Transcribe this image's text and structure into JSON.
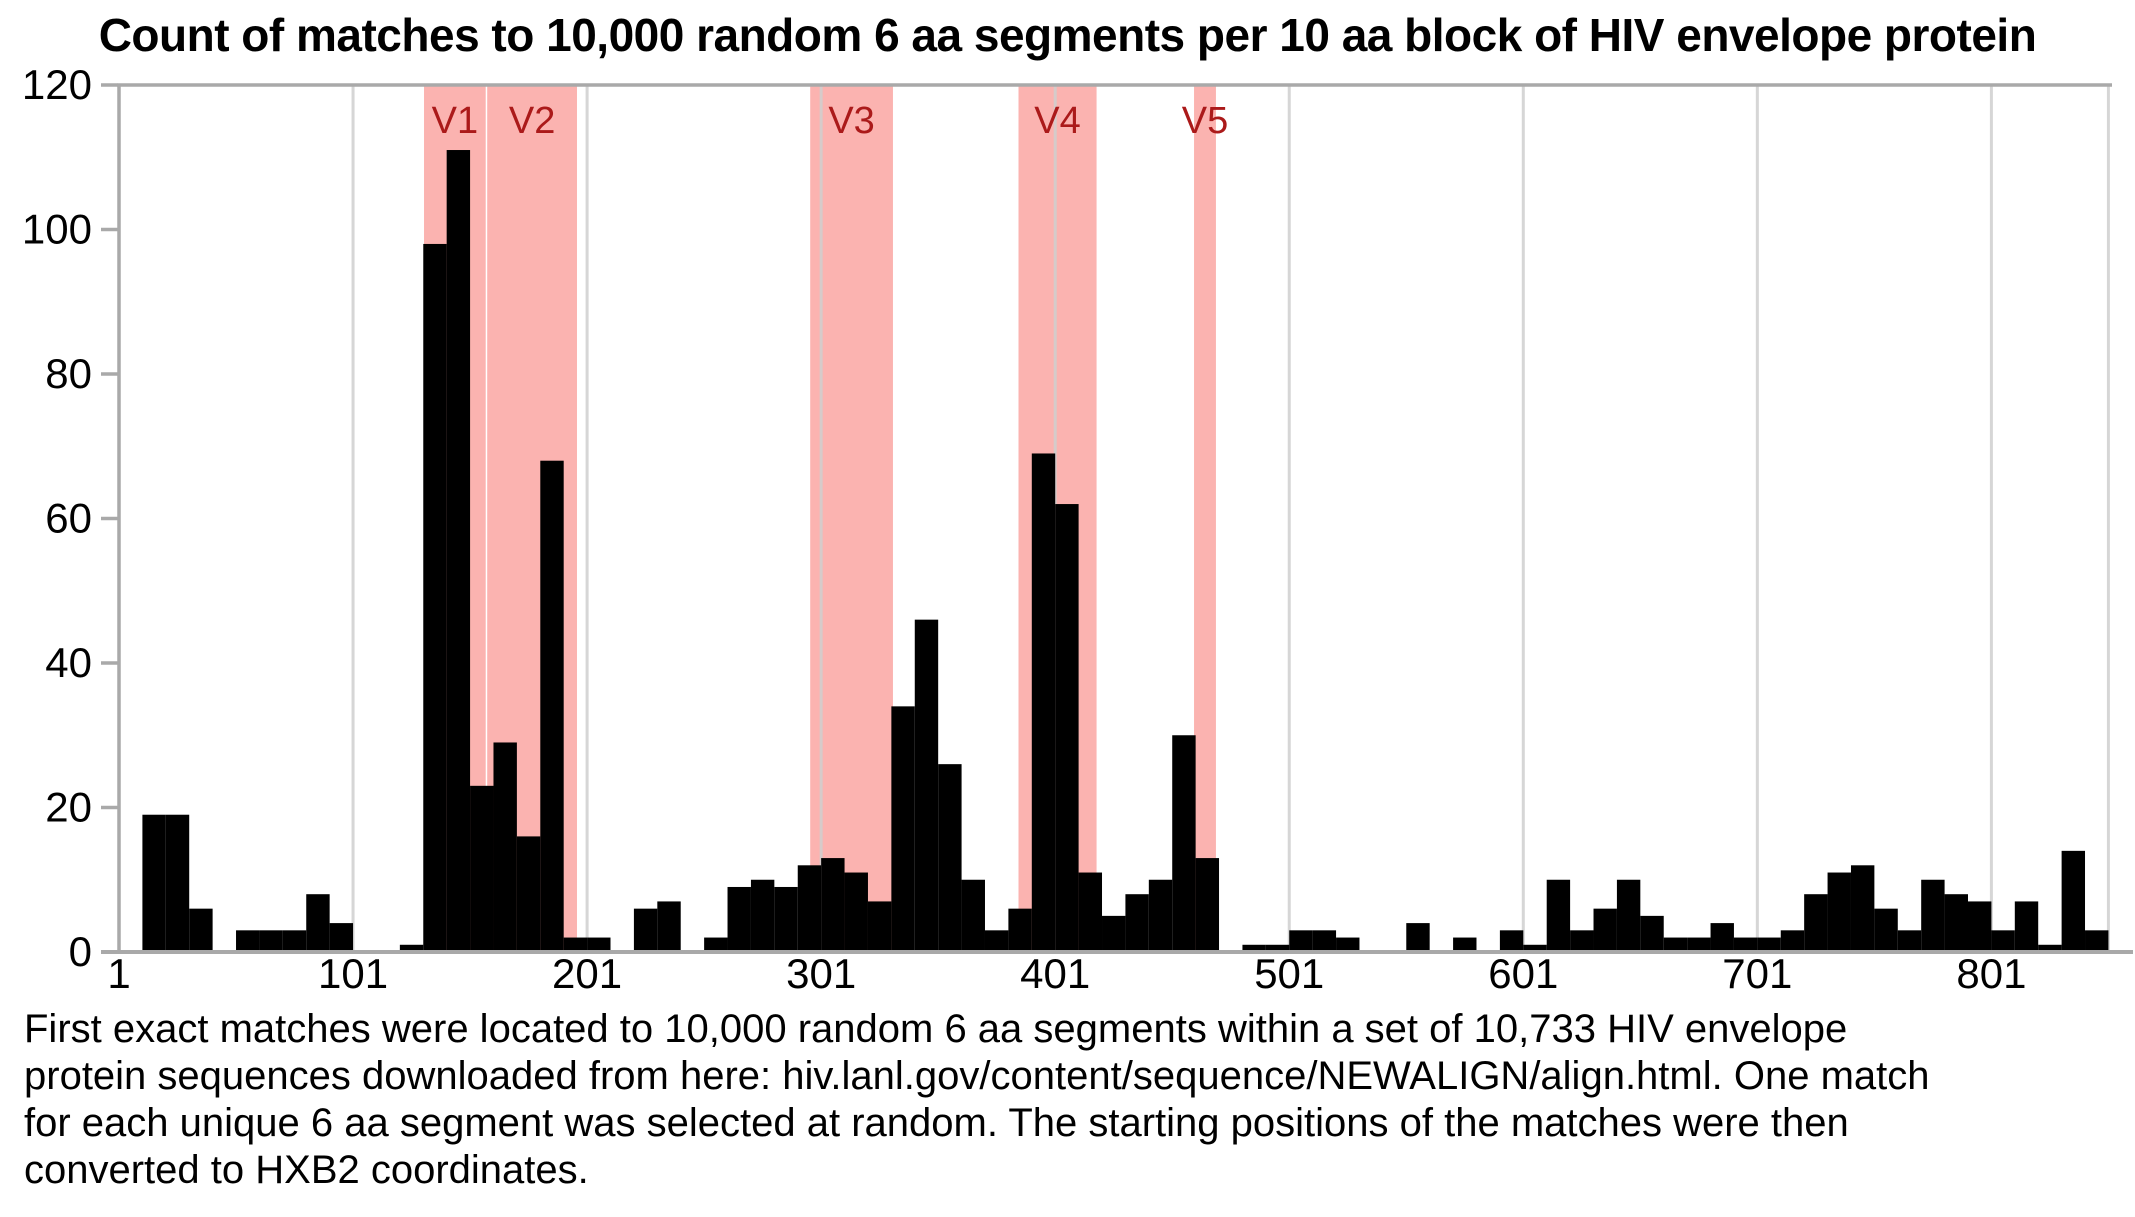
{
  "title": "Count of matches to 10,000 random 6 aa segments per 10 aa block of HIV envelope protein",
  "caption": {
    "lines": [
      "First exact matches were located to 10,000 random 6 aa segments within a set of 10,733 HIV envelope",
      "protein sequences downloaded from here: hiv.lanl.gov/content/sequence/NEWALIGN/align.html. One match",
      "for each unique 6 aa segment was selected at random. The starting positions of the matches were then",
      "converted to HXB2 coordinates."
    ]
  },
  "colors": {
    "bar": "#000000",
    "band": "#fbb3b0",
    "band_label": "#ab1a1a",
    "grid": "#cfcfcf",
    "axis": "#a9a9a9",
    "text": "#000000",
    "background": "#ffffff"
  },
  "chart_data": {
    "type": "bar",
    "title": "Count of matches to 10,000 random 6 aa segments per 10 aa block of HIV envelope protein",
    "x_unit": "HXB2 amino-acid position",
    "block_size": 10,
    "first_block_start": 1,
    "ylim": [
      0,
      120
    ],
    "y_ticks": [
      0,
      20,
      40,
      60,
      80,
      100,
      120
    ],
    "x_ticks": [
      1,
      101,
      201,
      301,
      401,
      501,
      601,
      701,
      801
    ],
    "grid": "vertical gridlines at x ticks, horizontal line at y max",
    "legend": "none",
    "values": [
      0,
      19,
      19,
      6,
      0,
      3,
      3,
      3,
      8,
      4,
      0,
      0,
      1,
      98,
      111,
      23,
      29,
      16,
      68,
      2,
      2,
      0,
      6,
      7,
      0,
      2,
      9,
      10,
      9,
      12,
      13,
      11,
      7,
      34,
      46,
      26,
      10,
      3,
      6,
      69,
      62,
      11,
      5,
      8,
      10,
      30,
      13,
      0,
      1,
      1,
      3,
      3,
      2,
      0,
      0,
      4,
      0,
      2,
      0,
      3,
      1,
      10,
      3,
      6,
      10,
      5,
      2,
      2,
      4,
      2,
      2,
      3,
      8,
      11,
      12,
      6,
      3,
      10,
      8,
      7,
      3,
      7,
      1,
      14,
      3
    ],
    "variable_regions": [
      {
        "label": "V1",
        "start": 131,
        "end": 157
      },
      {
        "label": "V2",
        "start": 158,
        "end": 196
      },
      {
        "label": "V3",
        "start": 296,
        "end": 331
      },
      {
        "label": "V4",
        "start": 385,
        "end": 418
      },
      {
        "label": "V5",
        "start": 460,
        "end": 469
      }
    ]
  }
}
